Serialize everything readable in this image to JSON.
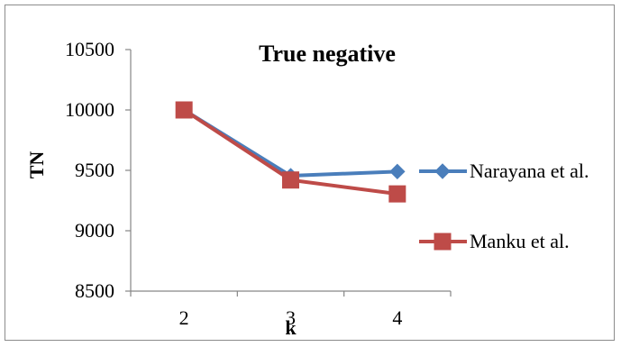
{
  "chart_data": {
    "type": "line",
    "title": "True negative",
    "xlabel": "k",
    "ylabel": "TN",
    "categories": [
      "2",
      "3",
      "4"
    ],
    "x": [
      2,
      3,
      4
    ],
    "ylim": [
      8500,
      10500
    ],
    "yticks": [
      "8500",
      "9000",
      "9500",
      "10000",
      "10500"
    ],
    "grid": false,
    "legend_position": "right",
    "series": [
      {
        "name": "Narayana et al.",
        "values": [
          10000,
          9455,
          9490
        ],
        "color": "#4a7ebb",
        "marker": "diamond"
      },
      {
        "name": "Manku et al.",
        "values": [
          10000,
          9420,
          9305
        ],
        "color": "#be4b48",
        "marker": "square"
      }
    ]
  }
}
